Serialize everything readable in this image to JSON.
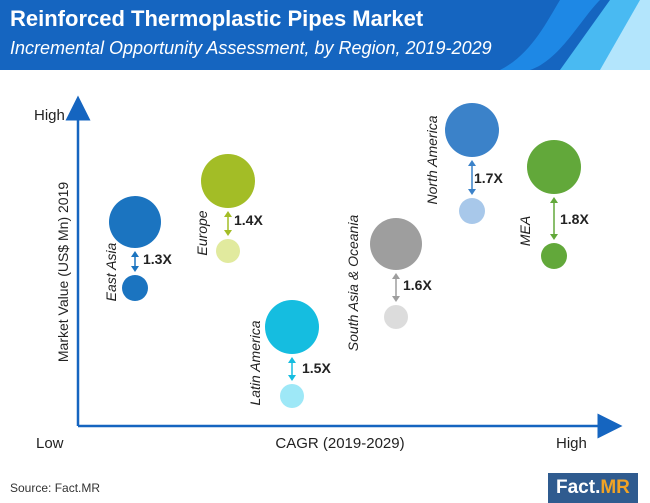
{
  "header": {
    "title": "Reinforced Thermoplastic Pipes Market",
    "subtitle": "Incremental Opportunity Assessment, by Region, 2019-2029"
  },
  "footer": {
    "source": "Source: Fact.MR",
    "logo_main": "Fact.",
    "logo_accent": "MR"
  },
  "colors": {
    "header_bg": "#1565c0",
    "axis": "#1565c0"
  },
  "chart_data": {
    "type": "bubble",
    "title": "Incremental Opportunity Assessment, by Region, 2019-2029",
    "xlabel": "CAGR (2019-2029)",
    "ylabel": "Market Value (US$ Mn)  2019",
    "x_low": "Low",
    "x_high": "High",
    "y_high": "High",
    "series": [
      {
        "region": "East Asia",
        "multiplier": "1.3X",
        "color_large": "#1b74c0",
        "color_small": "#1b74c0",
        "arrow_color": "#1b74c0"
      },
      {
        "region": "Europe",
        "multiplier": "1.4X",
        "color_large": "#a3bd26",
        "color_small": "#e1ea9e",
        "arrow_color": "#a3bd26"
      },
      {
        "region": "Latin America",
        "multiplier": "1.5X",
        "color_large": "#15bde0",
        "color_small": "#9ee8f7",
        "arrow_color": "#15bde0"
      },
      {
        "region": "South Asia & Oceania",
        "multiplier": "1.6X",
        "color_large": "#9e9e9e",
        "color_small": "#dcdcdc",
        "arrow_color": "#9e9e9e"
      },
      {
        "region": "North America",
        "multiplier": "1.7X",
        "color_large": "#3b82c9",
        "color_small": "#a8c8ea",
        "arrow_color": "#3b82c9"
      },
      {
        "region": "MEA",
        "multiplier": "1.8X",
        "color_large": "#62a83a",
        "color_small": "#62a83a",
        "arrow_color": "#62a83a"
      }
    ]
  }
}
